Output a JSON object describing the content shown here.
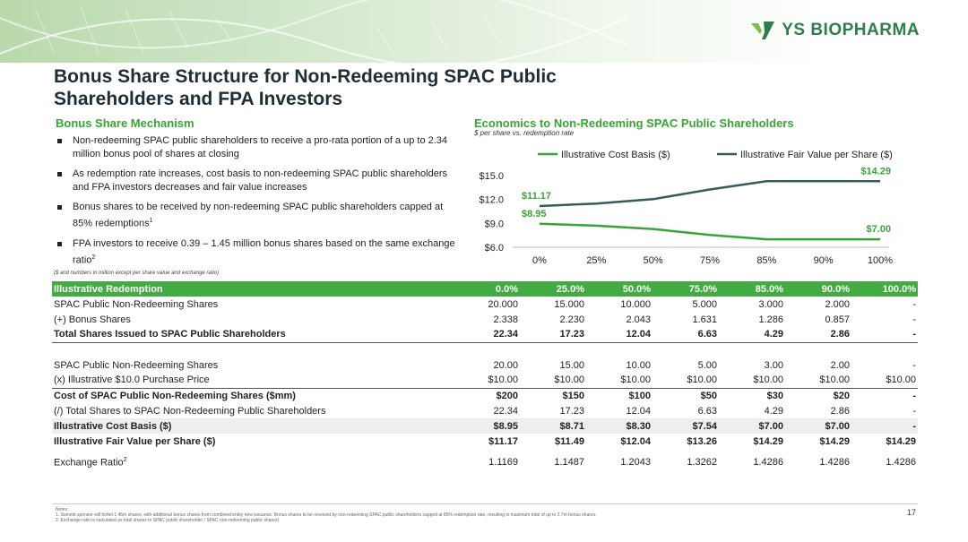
{
  "brand": {
    "name": "YS BIOPHARMA",
    "logo_icon": "ys-leaf-logo-icon",
    "color": "#2e7d4f"
  },
  "title_line1": "Bonus Share Structure for Non-Redeeming SPAC Public",
  "title_line2": "Shareholders and FPA Investors",
  "left": {
    "heading": "Bonus Share Mechanism",
    "bullets": [
      "Non-redeeming SPAC public shareholders to receive a pro-rata portion of a up to 2.34 million bonus pool of shares at closing",
      "As redemption rate increases, cost basis to non-redeeming SPAC public shareholders and FPA investors decreases and fair value increases",
      "Bonus shares to be received by non-redeeming SPAC public shareholders capped at 85% redemptions",
      "FPA investors to receive 0.39 – 1.45 million bonus shares based on the same exchange ratio"
    ],
    "bullet_superscripts": [
      "",
      "",
      "1",
      "2"
    ]
  },
  "right": {
    "heading": "Economics to Non-Redeeming SPAC Public Shareholders",
    "subheading": "$ per share vs. redemption rate"
  },
  "chart_data": {
    "type": "line",
    "title": "Economics to Non-Redeeming SPAC Public Shareholders",
    "subtitle": "$ per share vs. redemption rate",
    "categories": [
      "0%",
      "25%",
      "50%",
      "75%",
      "85%",
      "90%",
      "100%"
    ],
    "y_ticks": [
      "$6.0",
      "$9.0",
      "$12.0",
      "$15.0"
    ],
    "ylim": [
      6,
      15
    ],
    "series": [
      {
        "name": "Illustrative Cost Basis ($)",
        "color": "#3aa336",
        "values": [
          8.95,
          8.71,
          8.3,
          7.54,
          7.0,
          7.0,
          7.0
        ]
      },
      {
        "name": "Illustrative Fair Value per Share ($)",
        "color": "#355c5a",
        "values": [
          11.17,
          11.49,
          12.04,
          13.26,
          14.29,
          14.29,
          14.29
        ]
      }
    ],
    "data_labels": [
      {
        "series": 1,
        "index": 0,
        "text": "$11.17"
      },
      {
        "series": 0,
        "index": 0,
        "text": "$8.95"
      },
      {
        "series": 1,
        "index": 6,
        "text": "$14.29"
      },
      {
        "series": 0,
        "index": 6,
        "text": "$7.00"
      }
    ],
    "legend_position": "top",
    "grid": false
  },
  "table_note": "($ and numbers in million except per share value and exchange ratio)",
  "table": {
    "header": [
      "Illustrative Redemption",
      "0.0%",
      "25.0%",
      "50.0%",
      "75.0%",
      "85.0%",
      "90.0%",
      "100.0%"
    ],
    "rows": [
      {
        "cells": [
          "SPAC Public Non-Redeeming Shares",
          "20.000",
          "15.000",
          "10.000",
          "5.000",
          "3.000",
          "2.000",
          "-"
        ]
      },
      {
        "cells": [
          "(+) Bonus Shares",
          "2.338",
          "2.230",
          "2.043",
          "1.631",
          "1.286",
          "0.857",
          "-"
        ]
      },
      {
        "cells": [
          "Total Shares Issued to SPAC Public Shareholders",
          "22.34",
          "17.23",
          "12.04",
          "6.63",
          "4.29",
          "2.86",
          "-"
        ]
      },
      {
        "cells": [
          "",
          "",
          "",
          "",
          "",
          "",
          "",
          ""
        ]
      },
      {
        "cells": [
          "SPAC Public Non-Redeeming Shares",
          "20.00",
          "15.00",
          "10.00",
          "5.00",
          "3.00",
          "2.00",
          "-"
        ]
      },
      {
        "cells": [
          "(x) Illustrative $10.0 Purchase Price",
          "$10.00",
          "$10.00",
          "$10.00",
          "$10.00",
          "$10.00",
          "$10.00",
          "$10.00"
        ]
      },
      {
        "cells": [
          "Cost of SPAC Public Non-Redeeming Shares ($mm)",
          "$200",
          "$150",
          "$100",
          "$50",
          "$30",
          "$20",
          "-"
        ]
      },
      {
        "cells": [
          "(/) Total Shares to SPAC Non-Redeeming Public Shareholders",
          "22.34",
          "17.23",
          "12.04",
          "6.63",
          "4.29",
          "2.86",
          "-"
        ]
      },
      {
        "cells": [
          "Illustrative Cost Basis ($)",
          "$8.95",
          "$8.71",
          "$8.30",
          "$7.54",
          "$7.00",
          "$7.00",
          "-"
        ]
      },
      {
        "cells": [
          "Illustrative Fair Value per Share ($)",
          "$11.17",
          "$11.49",
          "$12.04",
          "$13.26",
          "$14.29",
          "$14.29",
          "$14.29"
        ]
      },
      {
        "cells": [
          "Exchange Ratio",
          "1.1169",
          "1.1487",
          "1.2043",
          "1.3262",
          "1.4286",
          "1.4286",
          "1.4286"
        ],
        "label_sup": "2"
      }
    ]
  },
  "notes": {
    "heading": "Notes:",
    "lines": [
      "1. Summit sponsor will forfeit 1.45m shares, with additional bonus shares from combined entity new issuance. Bonus shares to be received by non-redeeming SPAC public shareholders capped at 85% redemption rate, resulting in maximum total of up to 2.7m bonus shares.",
      "2. Exchange ratio is calculated as total shares to SPAC public shareholder / SPAC non-redeeming public shares)"
    ]
  },
  "page_number": "17"
}
